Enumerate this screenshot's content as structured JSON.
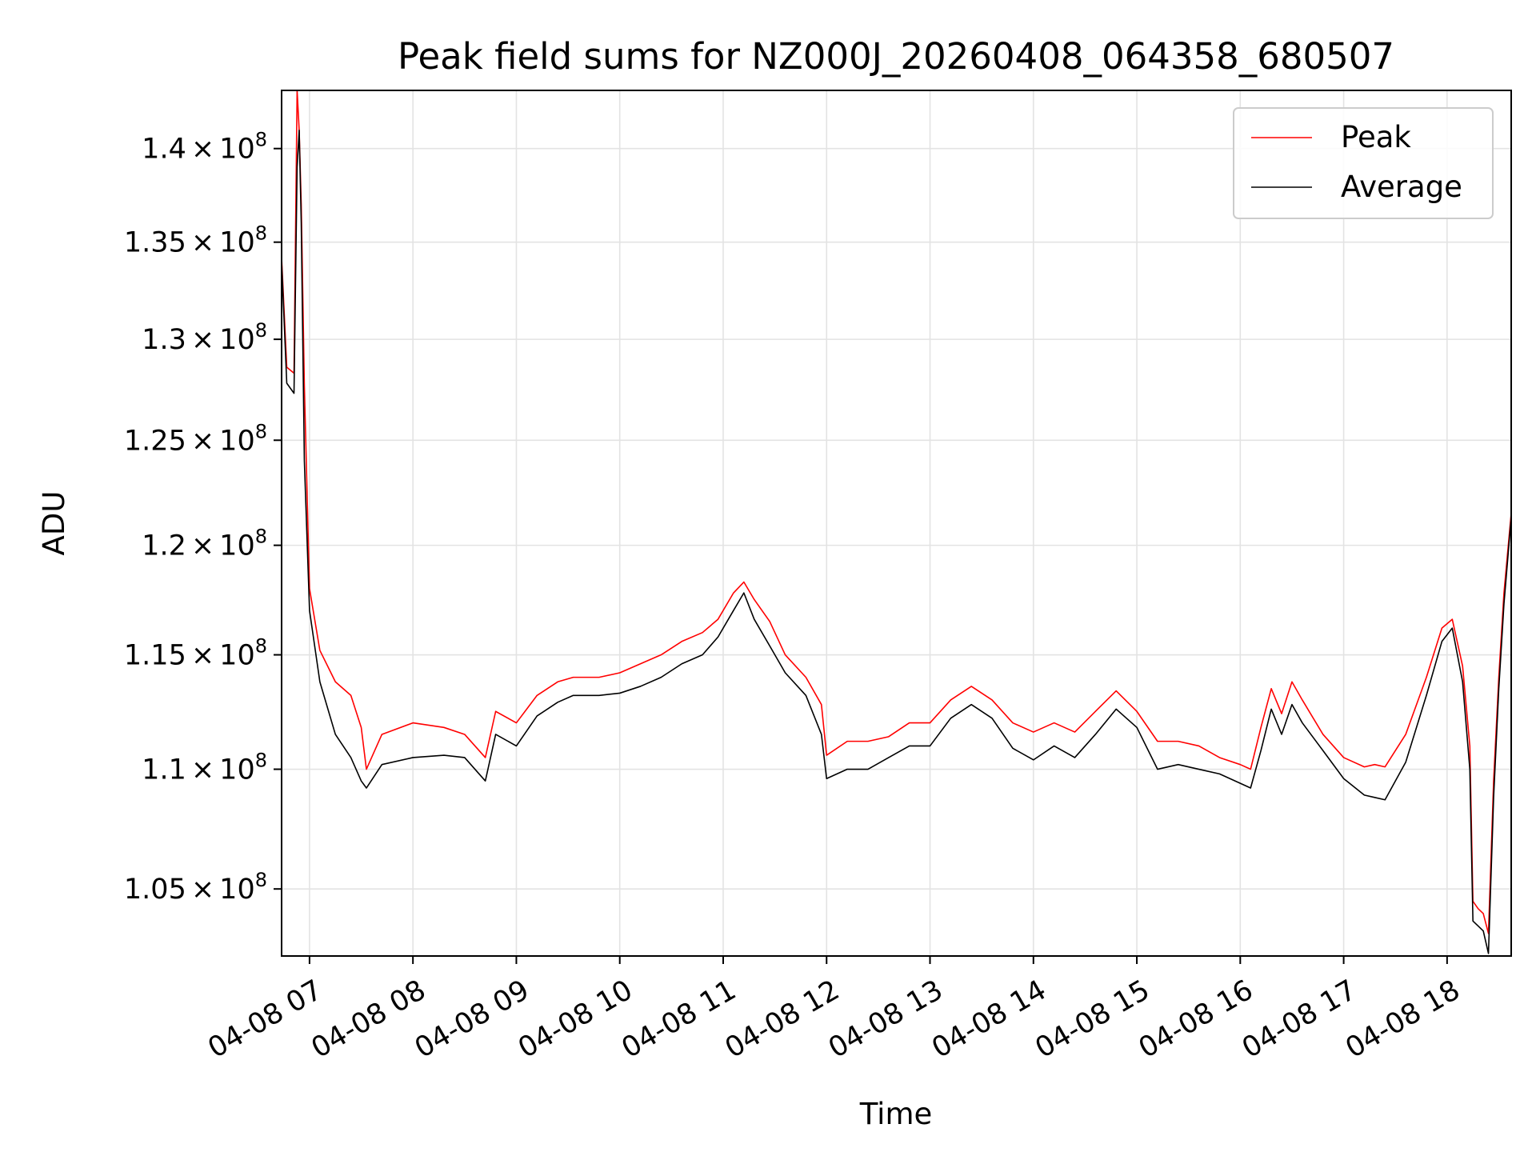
{
  "chart_data": {
    "type": "line",
    "title": "Peak field sums for NZ000J_20260408_064358_680507",
    "xlabel": "Time",
    "ylabel": "ADU",
    "yscale": "log",
    "ylim": [
      102300000,
      143200000
    ],
    "xlim_hours": [
      6.73,
      18.62
    ],
    "grid": true,
    "legend_position": "top-right",
    "x_ticks": [
      {
        "value": 7,
        "label": "04-08 07"
      },
      {
        "value": 8,
        "label": "04-08 08"
      },
      {
        "value": 9,
        "label": "04-08 09"
      },
      {
        "value": 10,
        "label": "04-08 10"
      },
      {
        "value": 11,
        "label": "04-08 11"
      },
      {
        "value": 12,
        "label": "04-08 12"
      },
      {
        "value": 13,
        "label": "04-08 13"
      },
      {
        "value": 14,
        "label": "04-08 14"
      },
      {
        "value": 15,
        "label": "04-08 15"
      },
      {
        "value": 16,
        "label": "04-08 16"
      },
      {
        "value": 17,
        "label": "04-08 17"
      },
      {
        "value": 18,
        "label": "04-08 18"
      }
    ],
    "y_ticks": [
      {
        "value": 105000000,
        "mantissa": "1.05",
        "times": "×",
        "base": "10",
        "exponent": "8"
      },
      {
        "value": 110000000,
        "mantissa": "1.1",
        "times": "×",
        "base": "10",
        "exponent": "8"
      },
      {
        "value": 115000000,
        "mantissa": "1.15",
        "times": "×",
        "base": "10",
        "exponent": "8"
      },
      {
        "value": 120000000,
        "mantissa": "1.2",
        "times": "×",
        "base": "10",
        "exponent": "8"
      },
      {
        "value": 125000000,
        "mantissa": "1.25",
        "times": "×",
        "base": "10",
        "exponent": "8"
      },
      {
        "value": 130000000,
        "mantissa": "1.3",
        "times": "×",
        "base": "10",
        "exponent": "8"
      },
      {
        "value": 135000000,
        "mantissa": "1.35",
        "times": "×",
        "base": "10",
        "exponent": "8"
      },
      {
        "value": 140000000,
        "mantissa": "1.4",
        "times": "×",
        "base": "10",
        "exponent": "8"
      }
    ],
    "series": [
      {
        "name": "Peak",
        "color": "#ff0000",
        "x_hours": [
          6.73,
          6.78,
          6.85,
          6.88,
          6.9,
          6.92,
          6.95,
          7.0,
          7.1,
          7.25,
          7.4,
          7.5,
          7.55,
          7.7,
          8.0,
          8.3,
          8.5,
          8.6,
          8.7,
          8.8,
          9.0,
          9.2,
          9.4,
          9.55,
          9.8,
          10.0,
          10.2,
          10.4,
          10.6,
          10.8,
          10.95,
          11.1,
          11.2,
          11.3,
          11.45,
          11.6,
          11.8,
          11.95,
          12.0,
          12.2,
          12.4,
          12.6,
          12.8,
          13.0,
          13.2,
          13.4,
          13.6,
          13.8,
          14.0,
          14.2,
          14.4,
          14.6,
          14.8,
          15.0,
          15.2,
          15.4,
          15.6,
          15.8,
          16.0,
          16.1,
          16.2,
          16.3,
          16.4,
          16.5,
          16.6,
          16.8,
          17.0,
          17.2,
          17.3,
          17.4,
          17.6,
          17.8,
          17.95,
          18.05,
          18.15,
          18.22,
          18.25,
          18.3,
          18.35,
          18.4,
          18.45,
          18.5,
          18.55,
          18.62
        ],
        "values": [
          134200000,
          128600000,
          128300000,
          143200000,
          141000000,
          137000000,
          127700000,
          118000000,
          115200000,
          113800000,
          113200000,
          111800000,
          110000000,
          111500000,
          112000000,
          111800000,
          111500000,
          111000000,
          110500000,
          112500000,
          112000000,
          113200000,
          113800000,
          114000000,
          114000000,
          114200000,
          114600000,
          115000000,
          115600000,
          116000000,
          116600000,
          117800000,
          118300000,
          117500000,
          116500000,
          115000000,
          114000000,
          112800000,
          110600000,
          111200000,
          111200000,
          111400000,
          112000000,
          112000000,
          113000000,
          113600000,
          113000000,
          112000000,
          111600000,
          112000000,
          111600000,
          112500000,
          113400000,
          112500000,
          111200000,
          111200000,
          111000000,
          110500000,
          110200000,
          110000000,
          111800000,
          113500000,
          112400000,
          113800000,
          113000000,
          111500000,
          110500000,
          110100000,
          110200000,
          110100000,
          111500000,
          114000000,
          116200000,
          116600000,
          114500000,
          111000000,
          104500000,
          104200000,
          104000000,
          103200000,
          109500000,
          114000000,
          117800000,
          121500000
        ]
      },
      {
        "name": "Average",
        "color": "#000000",
        "x_hours": [
          6.73,
          6.78,
          6.85,
          6.88,
          6.9,
          6.92,
          6.95,
          7.0,
          7.1,
          7.25,
          7.4,
          7.5,
          7.55,
          7.7,
          8.0,
          8.3,
          8.5,
          8.6,
          8.7,
          8.8,
          9.0,
          9.2,
          9.4,
          9.55,
          9.8,
          10.0,
          10.2,
          10.4,
          10.6,
          10.8,
          10.95,
          11.1,
          11.2,
          11.3,
          11.45,
          11.6,
          11.8,
          11.95,
          12.0,
          12.2,
          12.4,
          12.6,
          12.8,
          13.0,
          13.2,
          13.4,
          13.6,
          13.8,
          14.0,
          14.2,
          14.4,
          14.6,
          14.8,
          15.0,
          15.2,
          15.4,
          15.6,
          15.8,
          16.0,
          16.1,
          16.2,
          16.3,
          16.4,
          16.5,
          16.6,
          16.8,
          17.0,
          17.2,
          17.3,
          17.4,
          17.6,
          17.8,
          17.95,
          18.05,
          18.15,
          18.22,
          18.25,
          18.3,
          18.35,
          18.4,
          18.45,
          18.5,
          18.55,
          18.62
        ],
        "values": [
          134000000,
          127800000,
          127300000,
          139000000,
          141000000,
          136000000,
          124000000,
          117000000,
          113800000,
          111500000,
          110500000,
          109500000,
          109200000,
          110200000,
          110500000,
          110600000,
          110500000,
          110000000,
          109500000,
          111500000,
          111000000,
          112300000,
          112900000,
          113200000,
          113200000,
          113300000,
          113600000,
          114000000,
          114600000,
          115000000,
          115800000,
          117000000,
          117800000,
          116600000,
          115400000,
          114200000,
          113200000,
          111500000,
          109600000,
          110000000,
          110000000,
          110500000,
          111000000,
          111000000,
          112200000,
          112800000,
          112200000,
          110900000,
          110400000,
          111000000,
          110500000,
          111500000,
          112600000,
          111800000,
          110000000,
          110200000,
          110000000,
          109800000,
          109400000,
          109200000,
          110800000,
          112600000,
          111500000,
          112800000,
          112000000,
          110800000,
          109600000,
          108900000,
          108800000,
          108700000,
          110300000,
          113200000,
          115600000,
          116200000,
          113800000,
          110000000,
          103700000,
          103500000,
          103300000,
          102400000,
          108800000,
          113500000,
          117300000,
          121300000
        ]
      }
    ]
  }
}
